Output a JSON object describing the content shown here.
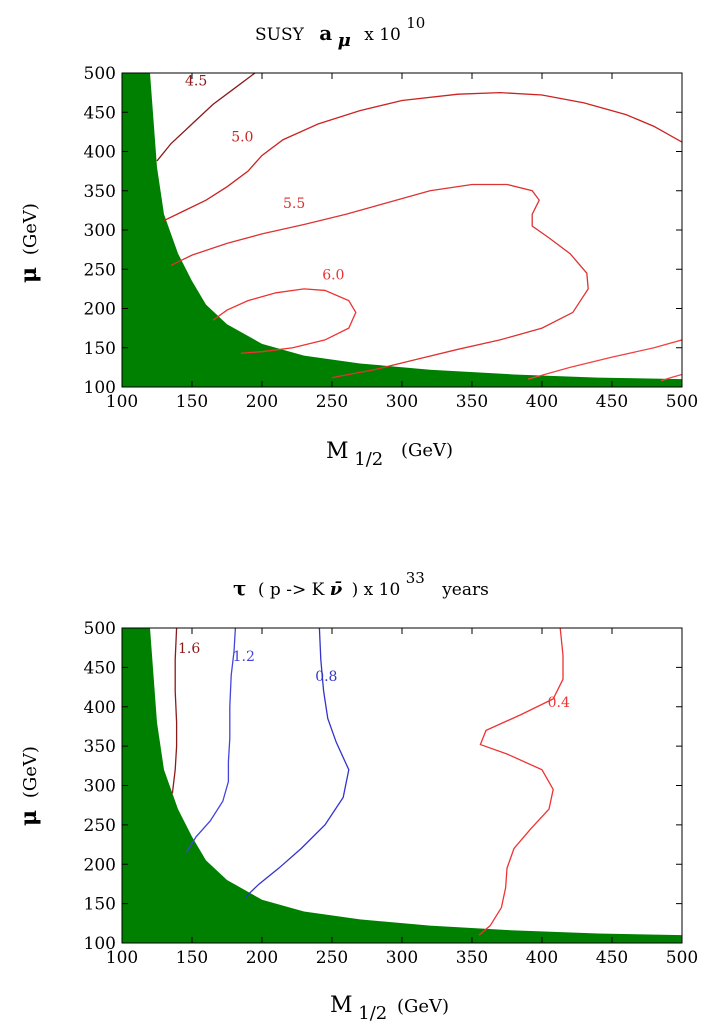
{
  "chart_data": [
    {
      "type": "line",
      "title": "SUSY  a μ  x 10 10",
      "title_parts": {
        "main": "SUSY",
        "symbol": "a",
        "sub": "μ",
        "times": "x 10",
        "exp": "10"
      },
      "xlabel": "M 1/2  (GeV)",
      "xlabel_parts": {
        "main": "M",
        "sub": "1/2",
        "unit": "(GeV)"
      },
      "ylabel": "μ (GeV)",
      "ylabel_parts": {
        "symbol": "μ",
        "unit": "(GeV)"
      },
      "xlim": [
        100,
        500
      ],
      "ylim": [
        100,
        500
      ],
      "x_ticks": [
        "100",
        "150",
        "200",
        "250",
        "300",
        "350",
        "400",
        "450",
        "500"
      ],
      "y_ticks": [
        "100",
        "150",
        "200",
        "250",
        "300",
        "350",
        "400",
        "450",
        "500"
      ],
      "excluded_region_color": "#008000",
      "excluded_boundary": [
        [
          120,
          500
        ],
        [
          125,
          380
        ],
        [
          130,
          320
        ],
        [
          140,
          270
        ],
        [
          150,
          235
        ],
        [
          160,
          205
        ],
        [
          175,
          180
        ],
        [
          200,
          155
        ],
        [
          230,
          140
        ],
        [
          270,
          130
        ],
        [
          320,
          122
        ],
        [
          380,
          116
        ],
        [
          440,
          112
        ],
        [
          500,
          110
        ]
      ],
      "series": [
        {
          "name": "4.5",
          "label": "4.5",
          "color": "#8B1A1A",
          "label_at": [
            145,
            484
          ],
          "points": [
            [
              125,
              388
            ],
            [
              135,
              410
            ],
            [
              150,
              435
            ],
            [
              165,
              460
            ],
            [
              180,
              480
            ],
            [
              195,
              500
            ]
          ]
        },
        {
          "name": "5.0",
          "label": "5.0",
          "color": "#CC2222",
          "label_at": [
            178,
            413
          ],
          "points": [
            [
              130,
              312
            ],
            [
              145,
              325
            ],
            [
              160,
              338
            ],
            [
              175,
              355
            ],
            [
              190,
              375
            ],
            [
              200,
              395
            ],
            [
              215,
              415
            ],
            [
              240,
              435
            ],
            [
              270,
              452
            ],
            [
              300,
              465
            ],
            [
              340,
              473
            ],
            [
              370,
              475
            ],
            [
              400,
              472
            ],
            [
              430,
              462
            ],
            [
              460,
              447
            ],
            [
              480,
              432
            ],
            [
              500,
              412
            ]
          ]
        },
        {
          "name": "5.5",
          "label": "5.5",
          "color": "#DD3333",
          "label_at": [
            215,
            328
          ],
          "points": [
            [
              135,
              255
            ],
            [
              150,
              268
            ],
            [
              175,
              283
            ],
            [
              200,
              295
            ],
            [
              230,
              307
            ],
            [
              260,
              320
            ],
            [
              290,
              335
            ],
            [
              320,
              350
            ],
            [
              350,
              358
            ],
            [
              375,
              358
            ],
            [
              393,
              350
            ],
            [
              398,
              338
            ],
            [
              393,
              320
            ],
            [
              393,
              305
            ],
            [
              405,
              290
            ],
            [
              420,
              270
            ],
            [
              432,
              245
            ],
            [
              433,
              225
            ],
            [
              422,
              195
            ],
            [
              400,
              175
            ],
            [
              370,
              160
            ],
            [
              340,
              148
            ],
            [
              310,
              135
            ],
            [
              280,
              122
            ],
            [
              250,
              112
            ]
          ]
        },
        {
          "name": "6.0",
          "label": "6.0",
          "color": "#EE3333",
          "label_at": [
            243,
            237
          ],
          "points": [
            [
              165,
              185
            ],
            [
              175,
              198
            ],
            [
              190,
              210
            ],
            [
              210,
              220
            ],
            [
              230,
              225
            ],
            [
              245,
              223
            ],
            [
              262,
              210
            ],
            [
              267,
              195
            ],
            [
              262,
              175
            ],
            [
              245,
              160
            ],
            [
              222,
              150
            ],
            [
              200,
              145
            ],
            [
              185,
              143
            ]
          ]
        },
        {
          "name": "other",
          "label": "",
          "color": "#EE4444",
          "label_at": null,
          "points": [
            [
              390,
              110
            ],
            [
              420,
              125
            ],
            [
              450,
              138
            ],
            [
              480,
              150
            ],
            [
              500,
              160
            ]
          ]
        },
        {
          "name": "other2",
          "label": "",
          "color": "#EE4444",
          "label_at": null,
          "points": [
            [
              485,
              108
            ],
            [
              492,
              112
            ],
            [
              500,
              116
            ]
          ]
        }
      ]
    },
    {
      "type": "line",
      "title": "τ ( p -> K ν̄ ) x 10 33  years",
      "title_parts": {
        "symbol": "τ",
        "mid": "( p -> K ",
        "nu": "ν̄",
        "times": ") x 10",
        "exp": "33",
        "unit": "years"
      },
      "xlabel": "M 1/2 (GeV)",
      "xlabel_parts": {
        "main": "M",
        "sub": "1/2",
        "unit": "(GeV)"
      },
      "ylabel": "μ (GeV)",
      "ylabel_parts": {
        "symbol": "μ",
        "unit": "(GeV)"
      },
      "xlim": [
        100,
        500
      ],
      "ylim": [
        100,
        500
      ],
      "x_ticks": [
        "100",
        "150",
        "200",
        "250",
        "300",
        "350",
        "400",
        "450",
        "500"
      ],
      "y_ticks": [
        "100",
        "150",
        "200",
        "250",
        "300",
        "350",
        "400",
        "450",
        "500"
      ],
      "excluded_region_color": "#008000",
      "excluded_boundary": [
        [
          120,
          500
        ],
        [
          125,
          380
        ],
        [
          130,
          320
        ],
        [
          140,
          270
        ],
        [
          150,
          235
        ],
        [
          160,
          205
        ],
        [
          175,
          180
        ],
        [
          200,
          155
        ],
        [
          230,
          140
        ],
        [
          270,
          130
        ],
        [
          320,
          122
        ],
        [
          380,
          116
        ],
        [
          440,
          112
        ],
        [
          500,
          110
        ]
      ],
      "series": [
        {
          "name": "1.6",
          "label": "1.6",
          "color": "#8B1A1A",
          "label_at": [
            140,
            468
          ],
          "points": [
            [
              136,
              290
            ],
            [
              138,
              320
            ],
            [
              139,
              350
            ],
            [
              139,
              380
            ],
            [
              138,
              420
            ],
            [
              138,
              460
            ],
            [
              139,
              500
            ]
          ]
        },
        {
          "name": "1.2",
          "label": "1.2",
          "color": "#4444DD",
          "label_at": [
            179,
            458
          ],
          "points": [
            [
              146,
              215
            ],
            [
              153,
              235
            ],
            [
              163,
              255
            ],
            [
              172,
              280
            ],
            [
              176,
              305
            ],
            [
              176,
              330
            ],
            [
              177,
              360
            ],
            [
              177,
              400
            ],
            [
              178,
              440
            ],
            [
              180,
              470
            ],
            [
              181,
              500
            ]
          ]
        },
        {
          "name": "0.8",
          "label": "0.8",
          "color": "#3333CC",
          "label_at": [
            238,
            433
          ],
          "points": [
            [
              188,
              158
            ],
            [
              198,
              175
            ],
            [
              212,
              195
            ],
            [
              228,
              220
            ],
            [
              245,
              250
            ],
            [
              258,
              285
            ],
            [
              262,
              320
            ],
            [
              253,
              355
            ],
            [
              247,
              385
            ],
            [
              244,
              420
            ],
            [
              242,
              460
            ],
            [
              241,
              500
            ]
          ]
        },
        {
          "name": "0.4",
          "label": "0.4",
          "color": "#EE3333",
          "label_at": [
            404,
            400
          ],
          "points": [
            [
              355,
              110
            ],
            [
              363,
              122
            ],
            [
              371,
              145
            ],
            [
              374,
              170
            ],
            [
              375,
              195
            ],
            [
              380,
              220
            ],
            [
              392,
              245
            ],
            [
              405,
              270
            ],
            [
              408,
              295
            ],
            [
              400,
              320
            ],
            [
              375,
              340
            ],
            [
              356,
              352
            ],
            [
              360,
              370
            ],
            [
              385,
              390
            ],
            [
              408,
              410
            ],
            [
              415,
              435
            ],
            [
              415,
              465
            ],
            [
              413,
              500
            ]
          ]
        }
      ]
    }
  ]
}
